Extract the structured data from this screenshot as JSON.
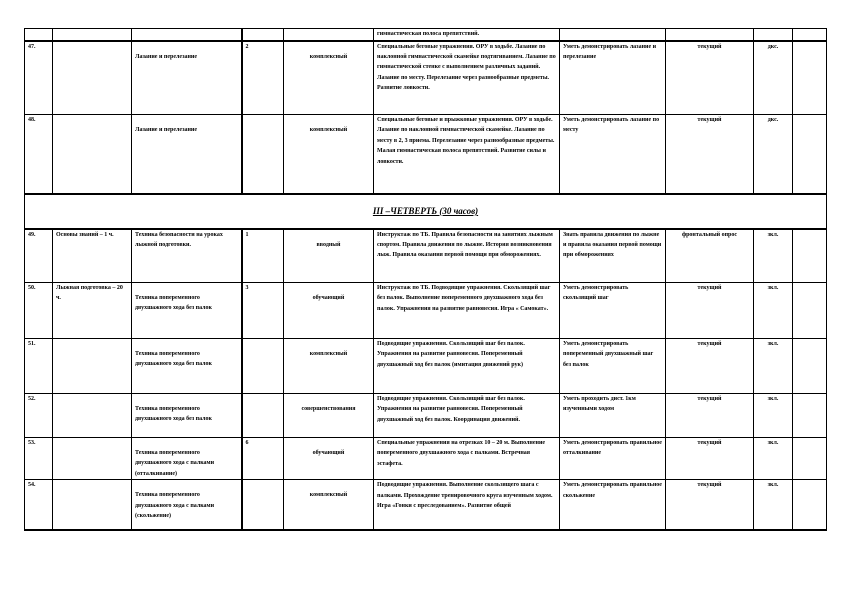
{
  "top_row": {
    "content": "гимнастическая полоса препятствий."
  },
  "rows_before": [
    {
      "num": "47.",
      "section": "",
      "topic": "Лазание и перелезание",
      "hours": "2",
      "type": "комплексный",
      "content": "Специальные беговые упражнения. ОРУ в ходьбе. Лазание по наклонной гимнастической скамейке подтягиванием. Лазание по гимнастической стенке с выполнением различных заданий. Лазание по месту. Перелезание через разнообразные предметы. Развитие ловкости.",
      "requirements": "Уметь демонстрировать лазание и перелезание",
      "control": "текущий",
      "homework": "дкс."
    },
    {
      "num": "48.",
      "section": "",
      "topic": "Лазание и перелезание",
      "hours": "",
      "type": "комплексный",
      "content": "Специальные беговые и прыжковые упражнения. ОРУ в ходьбе. Лазание по наклонной гимнастической скамейке. Лазание по месту в 2, 3 приема. Перелезание через разнообразные предметы. Малая гимнастическая полоса препятствий. Развитие силы и ловкости.",
      "requirements": "Уметь демонстрировать лазание по месту",
      "control": "текущий",
      "homework": "дкс."
    }
  ],
  "section_title": "III –ЧЕТВЕРТЬ (30 часов)",
  "rows_after": [
    {
      "num": "49.",
      "section": "Основы знаний – 1 ч.",
      "topic": "Техника безопасности на уроках лыжной подготовки.",
      "hours": "1",
      "type": "вводный",
      "content": "Инструктаж по ТБ. Правила безопасности на занятиях лыжным спортом. Правила движения по лыжне. История возникновения лыж. Правила оказания первой помощи при обморожениях.",
      "requirements": "Знать правила движения по лыжне и правила оказания первой помощи при обморожениях",
      "control": "фронтальный опрос",
      "homework": "зкл."
    },
    {
      "num": "50.",
      "section": "Лыжная подготовка – 20 ч.",
      "topic": "Техника попеременного двухшажного хода без палок",
      "hours": "3",
      "type": "обучающий",
      "content": "Инструктаж по ТБ. Подводящие упражнения. Скользящий шаг без палок. Выполнение попеременного двухшажного хода без палок. Упражнения на развитие равновесия. Игра « Самокат».",
      "requirements": "Уметь демонстрировать скользящий шаг",
      "control": "текущий",
      "homework": "зкл."
    },
    {
      "num": "51.",
      "section": "",
      "topic": "Техника попеременного двухшажного хода без палок",
      "hours": "",
      "type": "комплексный",
      "content": "Подводящие упражнения. Скользящий шаг без палок. Упражнения на развитие равновесия. Попеременный двухшажный ход без палок (имитация движений рук)",
      "requirements": "Уметь демонстрировать попеременный двухшажный шаг без палок",
      "control": "текущий",
      "homework": "зкл."
    },
    {
      "num": "52.",
      "section": "",
      "topic": "Техника попеременного двухшажного хода без палок",
      "hours": "",
      "type": "совершенствования",
      "content": "Подводящие упражнения. Скользящий шаг без палок. Упражнения на развитие равновесия. Попеременный двухшажный ход без палок. Координация движений.",
      "requirements": "Уметь проходить дист. 1км изученными ходом",
      "control": "текущий",
      "homework": "зкл."
    },
    {
      "num": "53.",
      "section": "",
      "topic": "Техника попеременного двухшажного хода с палками (отталкивание)",
      "hours": "6",
      "type": "обучающий",
      "content": "Специальные упражнения на отрезках 10 – 20 м. Выполнение попеременного двухшажного хода с палками. Встречная эстафета.",
      "requirements": "Уметь демонстрировать правильное отталкивание",
      "control": "текущий",
      "homework": "зкл."
    },
    {
      "num": "54.",
      "section": "",
      "topic": "Техника попеременного двухшажного хода с палками (скольжение)",
      "hours": "",
      "type": "комплексный",
      "content": "Подводящие упражнения. Выполнение скользящего шага с палками. Прохождение тренировочного круга изученным ходом. Игра «Гонки с преследованием». Развитие общей",
      "requirements": "Уметь демонстрировать правильное скольжение",
      "control": "текущий",
      "homework": "зкл."
    }
  ]
}
